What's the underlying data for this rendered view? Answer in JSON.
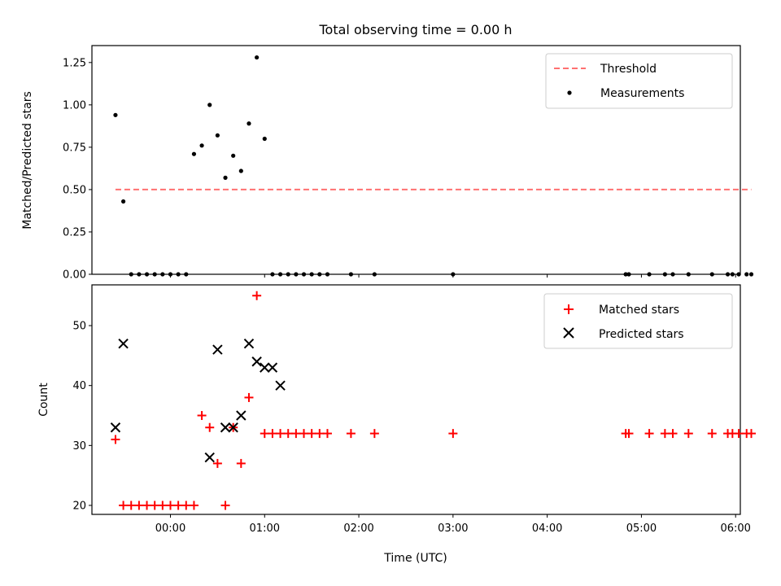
{
  "chart_data": {
    "title": "Total observing time = 0.00 h",
    "type": "scatter",
    "xlabel": "Time (UTC)",
    "xlim_minutes": [
      -50,
      363
    ],
    "xticks": [
      {
        "minutes": 0,
        "label": "00:00"
      },
      {
        "minutes": 60,
        "label": "01:00"
      },
      {
        "minutes": 120,
        "label": "02:00"
      },
      {
        "minutes": 180,
        "label": "03:00"
      },
      {
        "minutes": 240,
        "label": "04:00"
      },
      {
        "minutes": 300,
        "label": "05:00"
      },
      {
        "minutes": 360,
        "label": "06:00"
      }
    ],
    "x_minutes": [
      -35,
      -30,
      -25,
      -20,
      -15,
      -10,
      -5,
      0,
      5,
      10,
      15,
      20,
      25,
      30,
      35,
      40,
      45,
      50,
      55,
      60,
      65,
      70,
      75,
      80,
      85,
      90,
      95,
      100,
      115,
      130,
      180,
      290,
      292,
      305,
      315,
      320,
      330,
      345,
      355,
      358,
      362,
      367,
      370
    ],
    "panels": [
      {
        "type": "scatter",
        "ylabel": "Matched/Predicted stars",
        "ylim": [
          0,
          1.35
        ],
        "yticks": [
          0.0,
          0.25,
          0.5,
          0.75,
          1.0,
          1.25
        ],
        "ytick_labels": [
          "0.00",
          "0.25",
          "0.50",
          "0.75",
          "1.00",
          "1.25"
        ],
        "threshold": {
          "name": "Threshold",
          "value": 0.5,
          "color": "#ff7070"
        },
        "series": [
          {
            "name": "Measurements",
            "color": "#000000",
            "marker": "dot",
            "values": [
              0.94,
              0.43,
              0,
              0,
              0,
              0,
              0,
              0,
              0,
              0,
              0.71,
              0.76,
              1.0,
              0.82,
              0.57,
              0.7,
              0.61,
              0.89,
              1.28,
              0.8,
              0,
              0,
              0,
              0,
              0,
              0,
              0,
              0,
              0,
              0,
              0,
              0,
              0,
              0,
              0,
              0,
              0,
              0,
              0,
              0,
              0,
              0,
              0
            ]
          }
        ],
        "legend_position": "top-right"
      },
      {
        "type": "scatter",
        "ylabel": "Count",
        "ylim": [
          18.5,
          56.8
        ],
        "yticks": [
          20,
          30,
          40,
          50
        ],
        "ytick_labels": [
          "20",
          "30",
          "40",
          "50"
        ],
        "series": [
          {
            "name": "Matched stars",
            "color": "#ff0000",
            "marker": "plus",
            "values": [
              31,
              20,
              20,
              20,
              20,
              20,
              20,
              20,
              20,
              20,
              20,
              35,
              33,
              27,
              20,
              33,
              27,
              38,
              55,
              32,
              32,
              32,
              32,
              32,
              32,
              32,
              32,
              32,
              32,
              32,
              32,
              32,
              32,
              32,
              32,
              32,
              32,
              32,
              32,
              32,
              32,
              32,
              32
            ]
          },
          {
            "name": "Predicted stars",
            "color": "#000000",
            "marker": "x",
            "x_minutes": [
              -35,
              -30,
              25,
              30,
              35,
              40,
              45,
              50,
              55,
              60,
              65,
              70
            ],
            "values": [
              33,
              47,
              28,
              46,
              33,
              33,
              35,
              47,
              44,
              43,
              43,
              40
            ]
          }
        ],
        "legend_position": "top-right"
      }
    ]
  }
}
